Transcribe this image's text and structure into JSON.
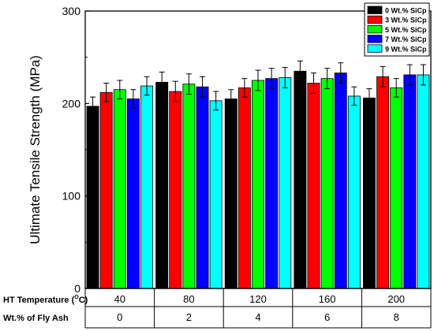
{
  "chart_data": {
    "type": "bar",
    "ylabel": "Ultimate Tensile Strength (MPa)",
    "ylim": [
      0,
      300
    ],
    "yticks": [
      "0",
      "100",
      "200",
      "300"
    ],
    "categories": [
      "40",
      "80",
      "120",
      "160",
      "200"
    ],
    "series": [
      {
        "name": "0 Wt.% SiCp",
        "color": "#000000",
        "values": [
          197,
          223,
          205,
          235,
          206
        ],
        "errors": [
          10,
          11,
          10,
          11,
          10
        ]
      },
      {
        "name": "3 Wt.% SiCp",
        "color": "#ff0000",
        "values": [
          212,
          213,
          217,
          222,
          229
        ],
        "errors": [
          10,
          11,
          10,
          11,
          11
        ]
      },
      {
        "name": "5 Wt.% SiCp",
        "color": "#00ff00",
        "values": [
          215,
          221,
          225,
          227,
          217
        ],
        "errors": [
          10,
          11,
          11,
          11,
          10
        ]
      },
      {
        "name": "7 Wt.% SiCp",
        "color": "#0000ff",
        "values": [
          205,
          218,
          227,
          233,
          231
        ],
        "errors": [
          10,
          11,
          11,
          11,
          11
        ]
      },
      {
        "name": "9 Wt.% SiCp",
        "color": "#00ffff",
        "values": [
          219,
          203,
          228,
          208,
          231
        ],
        "errors": [
          10,
          10,
          11,
          10,
          11
        ]
      }
    ],
    "table_rows": [
      {
        "label": "HT Temperature (",
        "label_sup": "O",
        "label_end": "C)",
        "values": [
          "40",
          "80",
          "120",
          "160",
          "200"
        ]
      },
      {
        "label": "Wt.% of Fly Ash",
        "values": [
          "0",
          "2",
          "4",
          "6",
          "8"
        ]
      }
    ],
    "legend_position": "top-right",
    "grid": false
  }
}
